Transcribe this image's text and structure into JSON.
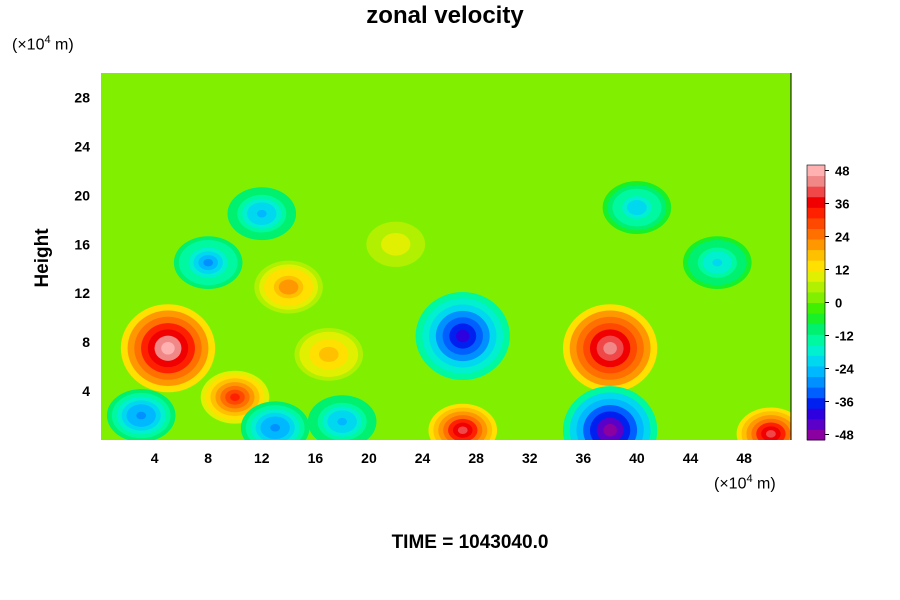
{
  "chart_data": {
    "type": "heatmap",
    "title": "zonal velocity",
    "ylabel": "Height",
    "xlabel": "",
    "x_unit": {
      "prefix": "(×10",
      "exponent": "4",
      "suffix": " m)"
    },
    "y_unit": {
      "prefix": "(×10",
      "exponent": "4",
      "suffix": " m)"
    },
    "xlim": [
      0,
      51.5
    ],
    "ylim": [
      0,
      30
    ],
    "x_ticks": [
      4,
      8,
      12,
      16,
      20,
      24,
      28,
      32,
      36,
      40,
      44,
      48
    ],
    "y_ticks": [
      4,
      8,
      12,
      16,
      20,
      24,
      28
    ],
    "colorbar": {
      "range": [
        -50,
        50
      ],
      "ticks": [
        48,
        36,
        24,
        12,
        0,
        -12,
        -24,
        -36,
        -48
      ],
      "colors": [
        "#8a00a0",
        "#5a00c8",
        "#2e00e0",
        "#0020f0",
        "#0060ff",
        "#0090ff",
        "#00b8ff",
        "#00d8f0",
        "#00f0d0",
        "#00f8a0",
        "#00f070",
        "#18f028",
        "#40f000",
        "#80f000",
        "#b0f000",
        "#e0f000",
        "#ffe000",
        "#ffc000",
        "#ff9800",
        "#ff7000",
        "#ff4800",
        "#ff2000",
        "#f00000",
        "#f04848",
        "#f08888",
        "#ffb0b0"
      ]
    },
    "background_value": 0,
    "features": [
      {
        "x": 5,
        "y": 7.5,
        "value": 48
      },
      {
        "x": 38,
        "y": 7.5,
        "value": 45
      },
      {
        "x": 27,
        "y": 8.5,
        "value": -42
      },
      {
        "x": 38,
        "y": 0.8,
        "value": -48
      },
      {
        "x": 27,
        "y": 0.8,
        "value": 40
      },
      {
        "x": 10,
        "y": 3.5,
        "value": 32
      },
      {
        "x": 8,
        "y": 14.5,
        "value": -28
      },
      {
        "x": 14,
        "y": 12.5,
        "value": 22
      },
      {
        "x": 3,
        "y": 2,
        "value": -30
      },
      {
        "x": 17,
        "y": 7,
        "value": 18
      },
      {
        "x": 50,
        "y": 0.5,
        "value": 40
      },
      {
        "x": 12,
        "y": 18.5,
        "value": -26
      },
      {
        "x": 40,
        "y": 19,
        "value": -22
      },
      {
        "x": 46,
        "y": 14.5,
        "value": -20
      },
      {
        "x": 18,
        "y": 1.5,
        "value": -26
      },
      {
        "x": 13,
        "y": 1,
        "value": -30
      },
      {
        "x": 22,
        "y": 16,
        "value": 10
      }
    ]
  },
  "footer": {
    "time_label": "TIME = 1043040.0"
  }
}
